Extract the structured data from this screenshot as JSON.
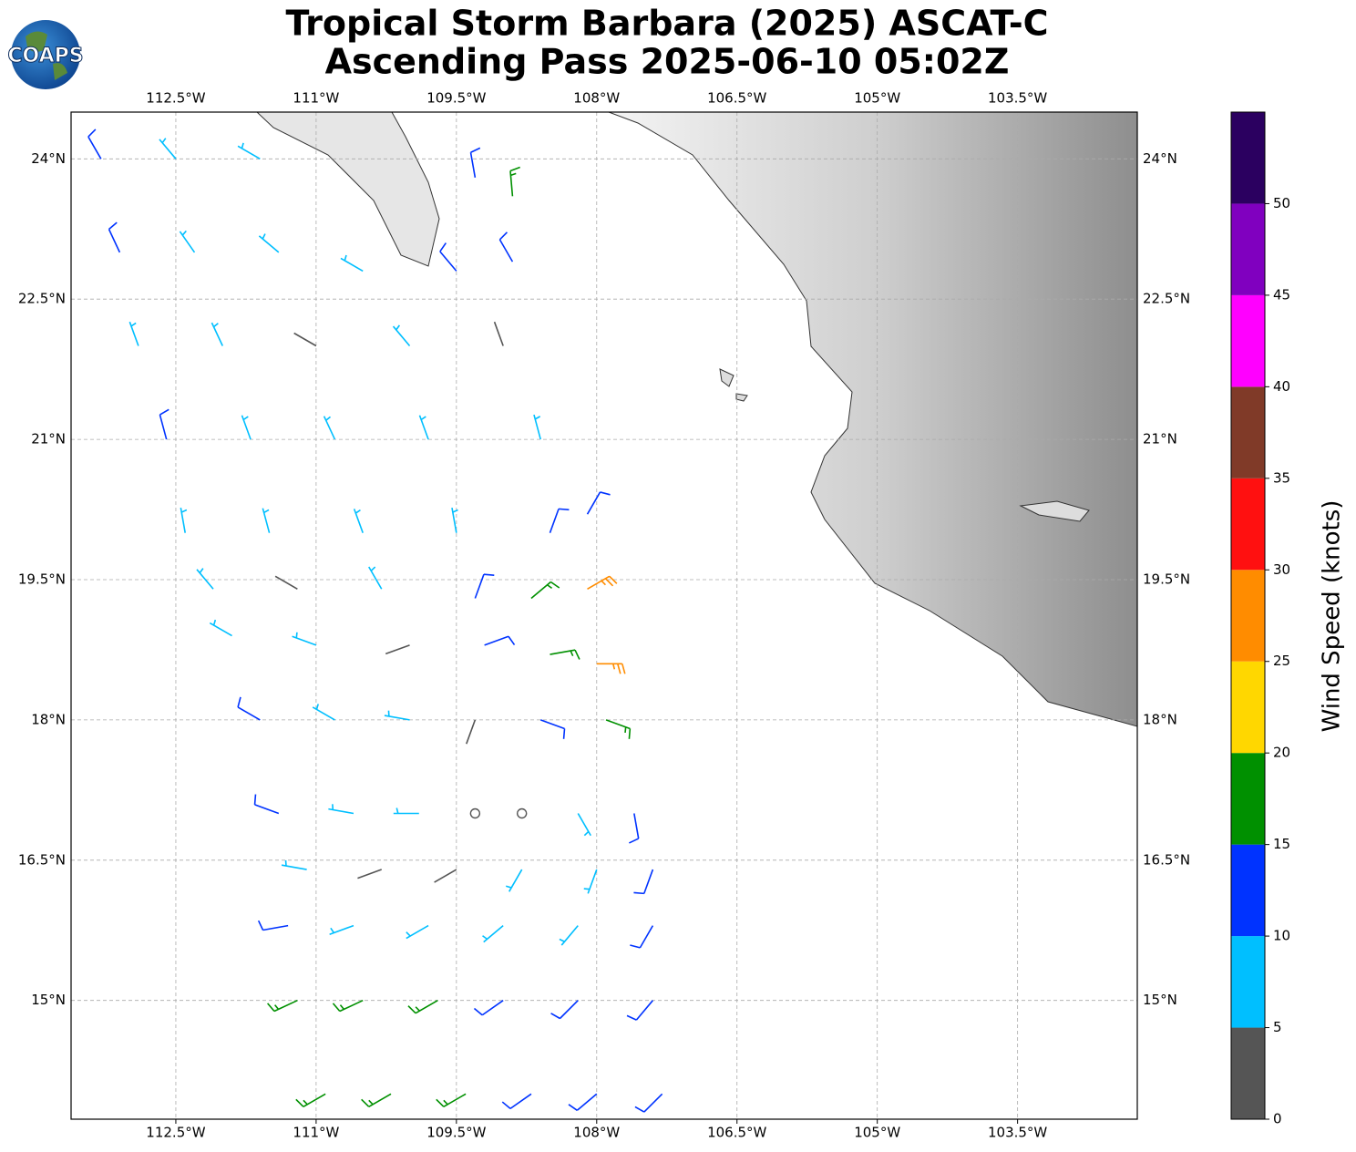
{
  "logo": "COAPS",
  "chart_data": {
    "type": "barbs",
    "title": "Tropical Storm Barbara (2025) ASCAT-C",
    "subtitle": "Ascending Pass 2025-06-10 05:02Z",
    "xlim": [
      -113.62,
      -102.22
    ],
    "ylim": [
      13.73,
      24.5
    ],
    "xticks": [
      {
        "value": -112.5,
        "label": "112.5°W"
      },
      {
        "value": -111,
        "label": "111°W"
      },
      {
        "value": -109.5,
        "label": "109.5°W"
      },
      {
        "value": -108,
        "label": "108°W"
      },
      {
        "value": -106.5,
        "label": "106.5°W"
      },
      {
        "value": -105,
        "label": "105°W"
      },
      {
        "value": -103.5,
        "label": "103.5°W"
      }
    ],
    "yticks": [
      {
        "value": 24,
        "label": "24°N"
      },
      {
        "value": 22.5,
        "label": "22.5°N"
      },
      {
        "value": 21,
        "label": "21°N"
      },
      {
        "value": 19.5,
        "label": "19.5°N"
      },
      {
        "value": 18,
        "label": "18°N"
      },
      {
        "value": 16.5,
        "label": "16.5°N"
      },
      {
        "value": 15,
        "label": "15°N"
      }
    ],
    "grid": true,
    "colorbar": {
      "label": "Wind Speed (knots)",
      "bounds": [
        0,
        5,
        10,
        15,
        20,
        25,
        30,
        35,
        40,
        45,
        50,
        55
      ],
      "colors": [
        "#555555",
        "#00bfff",
        "#0033ff",
        "#009000",
        "#ffd700",
        "#ff8c00",
        "#ff1010",
        "#803a28",
        "#ff00ff",
        "#8000bf",
        "#2b0060"
      ],
      "ticks": [
        0,
        5,
        10,
        15,
        20,
        25,
        30,
        35,
        40,
        45,
        50
      ]
    },
    "barbs": {
      "lon": [
        -113.3,
        -112.5,
        -111.6,
        -109.3,
        -108.9,
        -113.1,
        -112.3,
        -111.4,
        -110.5,
        -109.5,
        -108.9,
        -112.9,
        -112.0,
        -111.0,
        -110.0,
        -109.0,
        -112.6,
        -111.7,
        -110.8,
        -109.8,
        -108.6,
        -112.4,
        -111.5,
        -110.5,
        -109.5,
        -108.5,
        -108.1,
        -112.1,
        -111.2,
        -110.3,
        -109.3,
        -108.7,
        -108.1,
        -111.9,
        -111.0,
        -110.0,
        -109.2,
        -108.5,
        -108.0,
        -111.6,
        -110.8,
        -110.0,
        -109.3,
        -108.6,
        -107.9,
        -111.4,
        -110.6,
        -109.9,
        -109.3,
        -108.8,
        -108.2,
        -107.6,
        -111.1,
        -110.3,
        -109.5,
        -108.8,
        -108.0,
        -107.4,
        -111.3,
        -110.6,
        -109.8,
        -109.0,
        -108.2,
        -107.4,
        -111.2,
        -110.5,
        -109.7,
        -109.0,
        -108.2,
        -107.4,
        -110.9,
        -110.2,
        -109.4,
        -108.7,
        -108.0,
        -107.3
      ],
      "lat": [
        24,
        24,
        24,
        23.8,
        23.6,
        23,
        23,
        23,
        22.8,
        22.8,
        22.9,
        22,
        22,
        22,
        22,
        22,
        21,
        21,
        21,
        21,
        21,
        20,
        20,
        20,
        20,
        20,
        20.2,
        19.4,
        19.4,
        19.4,
        19.3,
        19.3,
        19.4,
        18.9,
        18.8,
        18.8,
        18.8,
        18.7,
        18.6,
        18,
        18,
        18,
        18,
        18,
        18,
        17,
        17,
        17,
        17,
        17,
        17,
        17,
        16.4,
        16.4,
        16.4,
        16.4,
        16.4,
        16.4,
        15.8,
        15.8,
        15.8,
        15.8,
        15.8,
        15.8,
        15,
        15,
        15,
        15,
        15,
        15,
        14,
        14,
        14,
        14,
        14,
        14
      ],
      "speed": [
        12,
        8,
        7,
        10,
        17,
        12,
        8,
        7,
        9,
        12,
        12,
        8,
        8,
        4,
        7,
        4,
        12,
        8,
        7,
        8,
        8,
        8,
        7,
        6,
        9,
        12,
        14,
        7,
        4,
        6,
        12,
        18,
        27,
        8,
        6,
        4,
        12,
        19,
        27,
        12,
        8,
        7,
        4,
        12,
        18,
        12,
        9,
        6,
        1,
        1,
        9,
        12,
        8,
        4,
        3,
        6,
        9,
        12,
        12,
        9,
        7,
        8,
        9,
        12,
        17,
        18,
        17,
        13,
        12,
        11,
        17,
        18,
        17,
        13,
        12,
        12
      ],
      "direction": [
        330,
        320,
        300,
        350,
        355,
        335,
        325,
        310,
        300,
        320,
        330,
        340,
        335,
        300,
        320,
        340,
        345,
        340,
        335,
        340,
        345,
        350,
        345,
        340,
        350,
        20,
        30,
        320,
        300,
        330,
        20,
        50,
        60,
        300,
        290,
        250,
        70,
        80,
        90,
        300,
        300,
        280,
        200,
        110,
        110,
        290,
        280,
        270,
        0,
        0,
        150,
        170,
        280,
        250,
        240,
        210,
        200,
        200,
        260,
        250,
        240,
        230,
        220,
        210,
        245,
        245,
        240,
        235,
        225,
        220,
        240,
        240,
        240,
        235,
        230,
        225
      ]
    }
  }
}
